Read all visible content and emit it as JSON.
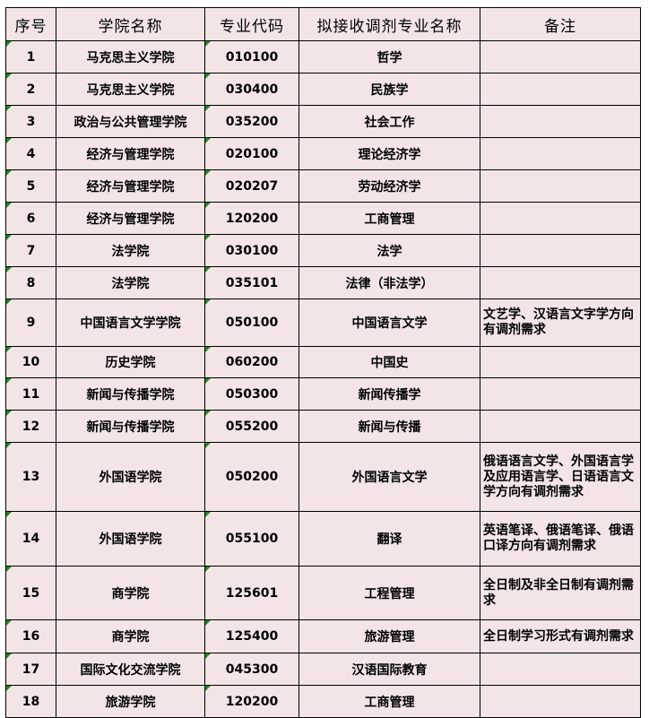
{
  "headers": [
    "序号",
    "学院名称",
    "专业代码",
    "拟接收调剂专业名称",
    "备注"
  ],
  "rows": [
    {
      "no": "1",
      "college": "马克思主义学院",
      "code": "010100",
      "major": "哲学",
      "note": ""
    },
    {
      "no": "2",
      "college": "马克思主义学院",
      "code": "030400",
      "major": "民族学",
      "note": ""
    },
    {
      "no": "3",
      "college": "政治与公共管理学院",
      "code": "035200",
      "major": "社会工作",
      "note": ""
    },
    {
      "no": "4",
      "college": "经济与管理学院",
      "code": "020100",
      "major": "理论经济学",
      "note": ""
    },
    {
      "no": "5",
      "college": "经济与管理学院",
      "code": "020207",
      "major": "劳动经济学",
      "note": ""
    },
    {
      "no": "6",
      "college": "经济与管理学院",
      "code": "120200",
      "major": "工商管理",
      "note": ""
    },
    {
      "no": "7",
      "college": "法学院",
      "code": "030100",
      "major": "法学",
      "note": ""
    },
    {
      "no": "8",
      "college": "法学院",
      "code": "035101",
      "major": "法律（非法学）",
      "note": ""
    },
    {
      "no": "9",
      "college": "中国语言文学学院",
      "code": "050100",
      "major": "中国语言文学",
      "note": "文艺学、汉语言文字学方向有调剂需求"
    },
    {
      "no": "10",
      "college": "历史学院",
      "code": "060200",
      "major": "中国史",
      "note": ""
    },
    {
      "no": "11",
      "college": "新闻与传播学院",
      "code": "050300",
      "major": "新闻传播学",
      "note": ""
    },
    {
      "no": "12",
      "college": "新闻与传播学院",
      "code": "055200",
      "major": "新闻与传播",
      "note": ""
    },
    {
      "no": "13",
      "college": "外国语学院",
      "code": "050200",
      "major": "外国语言文学",
      "note": "俄语语言文学、外国语言学及应用语言学、日语语言文学方向有调剂需求"
    },
    {
      "no": "14",
      "college": "外国语学院",
      "code": "055100",
      "major": "翻译",
      "note": "英语笔译、俄语笔译、俄语口译方向有调剂需求"
    },
    {
      "no": "15",
      "college": "商学院",
      "code": "125601",
      "major": "工程管理",
      "note": "全日制及非全日制有调剂需求"
    },
    {
      "no": "16",
      "college": "商学院",
      "code": "125400",
      "major": "旅游管理",
      "note": "全日制学习形式有调剂需求"
    },
    {
      "no": "17",
      "college": "国际文化交流学院",
      "code": "045300",
      "major": "汉语国际教育",
      "note": ""
    },
    {
      "no": "18",
      "college": "旅游学院",
      "code": "120200",
      "major": "工商管理",
      "note": ""
    }
  ]
}
